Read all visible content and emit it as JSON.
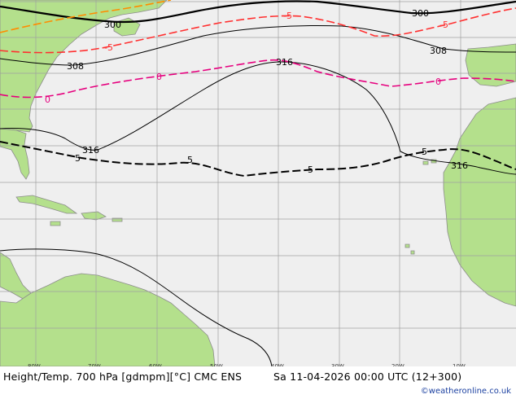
{
  "footer": {
    "title": "Height/Temp. 700 hPa [gdmpm][°C] CMC ENS",
    "valid": "Sa 11-04-2026 00:00 UTC (12+300)",
    "credit": "©weatheronline.co.uk"
  },
  "longitude_labels": [
    "80W",
    "70W",
    "60W",
    "50W",
    "40W",
    "30W",
    "20W",
    "10W"
  ],
  "height_contour_labels": {
    "c300_left": "300",
    "c300_right": "300",
    "c308_left": "308",
    "c308_right": "308",
    "c316_top": "316",
    "c316_left": "316",
    "c316_right": "316"
  },
  "temperature_contour_labels": {
    "t_m5_top": "-5",
    "t_m5_top_right": "-5",
    "t_m5_left_orange": "-5",
    "t_0_left": "0",
    "t_0_mid": "0",
    "t_0_right": "0",
    "t_5_left": "5",
    "t_5_mid": "5",
    "t_5_center": "5",
    "t_5_right": "5"
  },
  "colors": {
    "ocean": "#efefef",
    "land": "#b4e08c",
    "coast": "#8c8c8c",
    "grid": "#a0a0a0",
    "height_contour": "#000000",
    "temp_minus5": "#ff3030",
    "temp_minus5_warm": "#ff8c00",
    "temp_zero": "#e6007e",
    "temp_plus5": "#000000",
    "credit": "#1a3fa0"
  }
}
